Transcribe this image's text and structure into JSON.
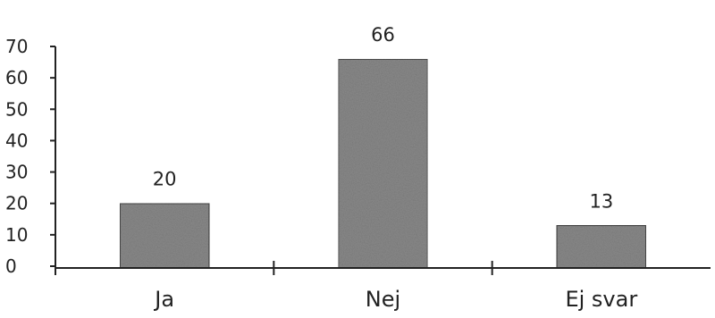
{
  "chart_data": {
    "type": "bar",
    "categories": [
      "Ja",
      "Nej",
      "Ej svar"
    ],
    "values": [
      20,
      66,
      13
    ],
    "data_labels": [
      "20",
      "66",
      "13"
    ],
    "title": "",
    "xlabel": "",
    "ylabel": "",
    "ylim": [
      0,
      70
    ],
    "yticks": [
      0,
      10,
      20,
      30,
      40,
      50,
      60,
      70
    ],
    "grid": false,
    "legend": "none",
    "bar_color": "#8a8a8a"
  }
}
